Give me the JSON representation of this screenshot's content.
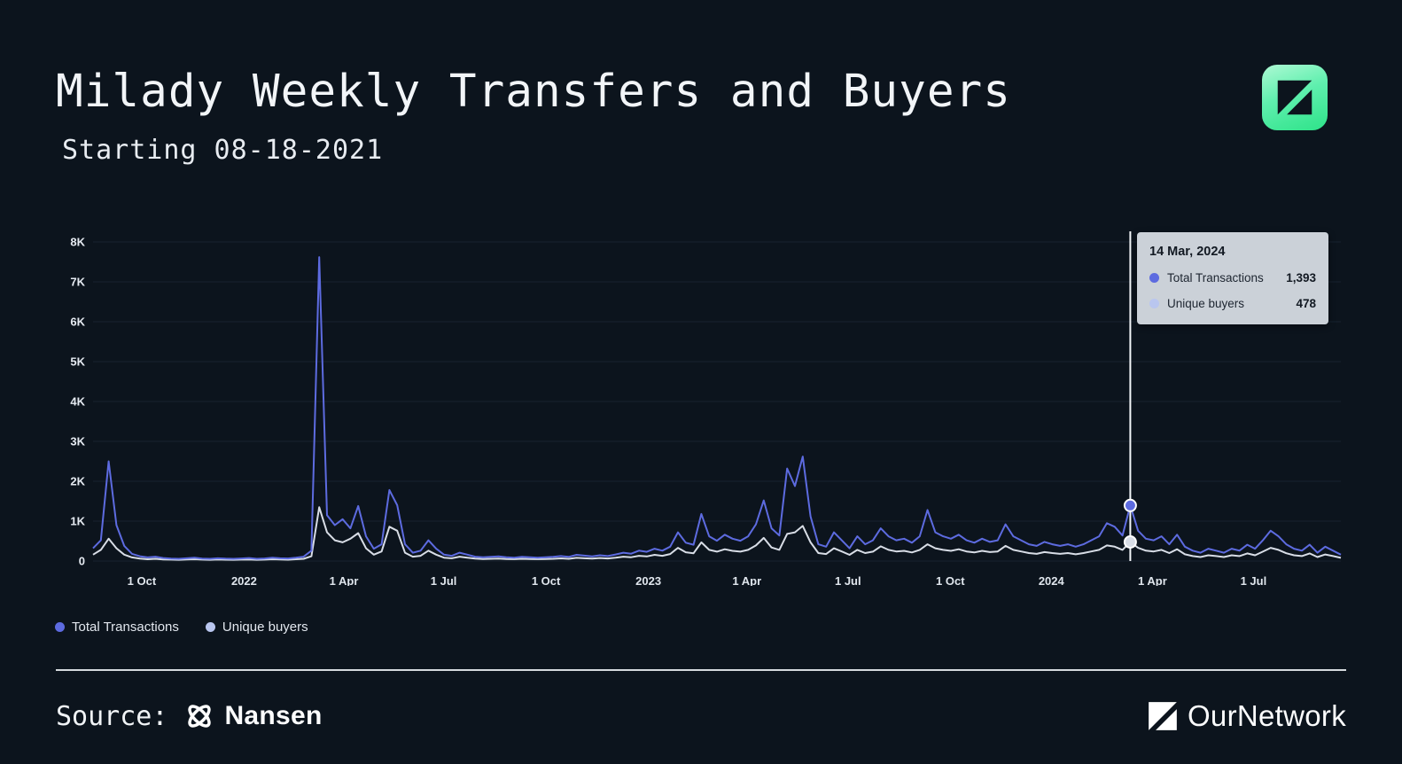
{
  "title": "Milady Weekly Transfers and Buyers",
  "subtitle": "Starting 08-18-2021",
  "colors": {
    "background": "#0c141d",
    "accent_blue": "#5d6be0",
    "accent_light_line": "#d8dde6",
    "accent_light_dot": "#b9c6ef",
    "tooltip_bg": "#cbd1d8",
    "logo_green_top": "#aef9d4",
    "logo_green_bottom": "#2ee389"
  },
  "chart_data": {
    "type": "line",
    "title": "Milady Weekly Transfers and Buyers",
    "subtitle": "Starting 08-18-2021",
    "ylim": [
      0,
      8000
    ],
    "grid": true,
    "legend_position": "bottom-left",
    "y_ticks": [
      {
        "value": 0,
        "label": "0"
      },
      {
        "value": 1000,
        "label": "1K"
      },
      {
        "value": 2000,
        "label": "2K"
      },
      {
        "value": 3000,
        "label": "3K"
      },
      {
        "value": 4000,
        "label": "4K"
      },
      {
        "value": 5000,
        "label": "5K"
      },
      {
        "value": 6000,
        "label": "6K"
      },
      {
        "value": 7000,
        "label": "7K"
      },
      {
        "value": 8000,
        "label": "8K"
      }
    ],
    "x_ticks": [
      {
        "pos": 0.039,
        "label": "1 Oct"
      },
      {
        "pos": 0.121,
        "label": "2022"
      },
      {
        "pos": 0.201,
        "label": "1 Apr"
      },
      {
        "pos": 0.281,
        "label": "1 Jul"
      },
      {
        "pos": 0.363,
        "label": "1 Oct"
      },
      {
        "pos": 0.445,
        "label": "2023"
      },
      {
        "pos": 0.524,
        "label": "1 Apr"
      },
      {
        "pos": 0.605,
        "label": "1 Jul"
      },
      {
        "pos": 0.687,
        "label": "1 Oct"
      },
      {
        "pos": 0.768,
        "label": "2024"
      },
      {
        "pos": 0.849,
        "label": "1 Apr"
      },
      {
        "pos": 0.93,
        "label": "1 Jul"
      }
    ],
    "series": [
      {
        "name": "Total Transactions",
        "color": "#5d6be0",
        "values": [
          320,
          520,
          2500,
          900,
          380,
          180,
          120,
          90,
          110,
          75,
          60,
          55,
          70,
          85,
          60,
          55,
          70,
          60,
          55,
          65,
          75,
          55,
          65,
          85,
          70,
          65,
          85,
          110,
          260,
          7620,
          1150,
          900,
          1050,
          820,
          1380,
          620,
          310,
          420,
          1780,
          1400,
          420,
          210,
          260,
          520,
          310,
          160,
          130,
          210,
          160,
          110,
          95,
          105,
          115,
          95,
          85,
          105,
          95,
          85,
          95,
          105,
          125,
          105,
          155,
          135,
          115,
          145,
          125,
          165,
          210,
          185,
          260,
          230,
          310,
          260,
          360,
          720,
          460,
          410,
          1180,
          620,
          510,
          660,
          560,
          510,
          620,
          920,
          1520,
          820,
          640,
          2320,
          1880,
          2620,
          1120,
          420,
          360,
          720,
          520,
          320,
          620,
          420,
          520,
          820,
          620,
          520,
          560,
          460,
          620,
          1280,
          720,
          620,
          560,
          660,
          520,
          460,
          560,
          480,
          520,
          920,
          620,
          520,
          420,
          380,
          480,
          420,
          380,
          420,
          360,
          420,
          520,
          620,
          950,
          860,
          640,
          1393,
          760,
          560,
          520,
          620,
          420,
          660,
          360,
          260,
          210,
          310,
          260,
          210,
          310,
          260,
          410,
          310,
          520,
          760,
          620,
          420,
          310,
          260,
          410,
          210,
          360,
          260,
          160
        ]
      },
      {
        "name": "Unique buyers",
        "color": "#d8dde6",
        "values": [
          160,
          280,
          560,
          320,
          160,
          90,
          60,
          45,
          55,
          40,
          35,
          30,
          38,
          45,
          35,
          30,
          38,
          34,
          30,
          36,
          40,
          32,
          36,
          44,
          38,
          34,
          44,
          55,
          120,
          1350,
          720,
          520,
          470,
          560,
          700,
          320,
          160,
          240,
          860,
          760,
          210,
          110,
          130,
          260,
          160,
          85,
          70,
          110,
          85,
          60,
          52,
          56,
          60,
          52,
          46,
          56,
          52,
          46,
          52,
          56,
          66,
          56,
          80,
          70,
          60,
          75,
          65,
          85,
          110,
          95,
          130,
          115,
          155,
          130,
          175,
          330,
          220,
          195,
          470,
          280,
          235,
          295,
          255,
          235,
          280,
          390,
          580,
          340,
          280,
          680,
          720,
          880,
          470,
          200,
          175,
          320,
          240,
          155,
          280,
          200,
          235,
          370,
          280,
          240,
          255,
          215,
          280,
          420,
          320,
          280,
          255,
          295,
          240,
          215,
          255,
          225,
          240,
          380,
          280,
          240,
          200,
          180,
          225,
          200,
          180,
          200,
          170,
          200,
          240,
          280,
          390,
          360,
          280,
          478,
          330,
          260,
          240,
          280,
          200,
          295,
          170,
          125,
          100,
          145,
          125,
          100,
          145,
          125,
          190,
          145,
          235,
          330,
          280,
          195,
          145,
          125,
          190,
          100,
          165,
          125,
          80
        ]
      }
    ],
    "highlight": {
      "index": 133,
      "date": "14 Mar, 2024",
      "values": [
        1393,
        478
      ]
    }
  },
  "tooltip": {
    "date": "14 Mar, 2024",
    "rows": [
      {
        "label": "Total Transactions",
        "value": "1,393",
        "color": "#5d6be0"
      },
      {
        "label": "Unique buyers",
        "value": "478",
        "color": "#b9c6ef"
      }
    ]
  },
  "legend": {
    "items": [
      {
        "label": "Total Transactions",
        "color": "#5d6be0"
      },
      {
        "label": "Unique buyers",
        "color": "#b9c6ef"
      }
    ]
  },
  "footer": {
    "source_label": "Source:",
    "source_name": "Nansen",
    "brand_name": "OurNetwork"
  }
}
